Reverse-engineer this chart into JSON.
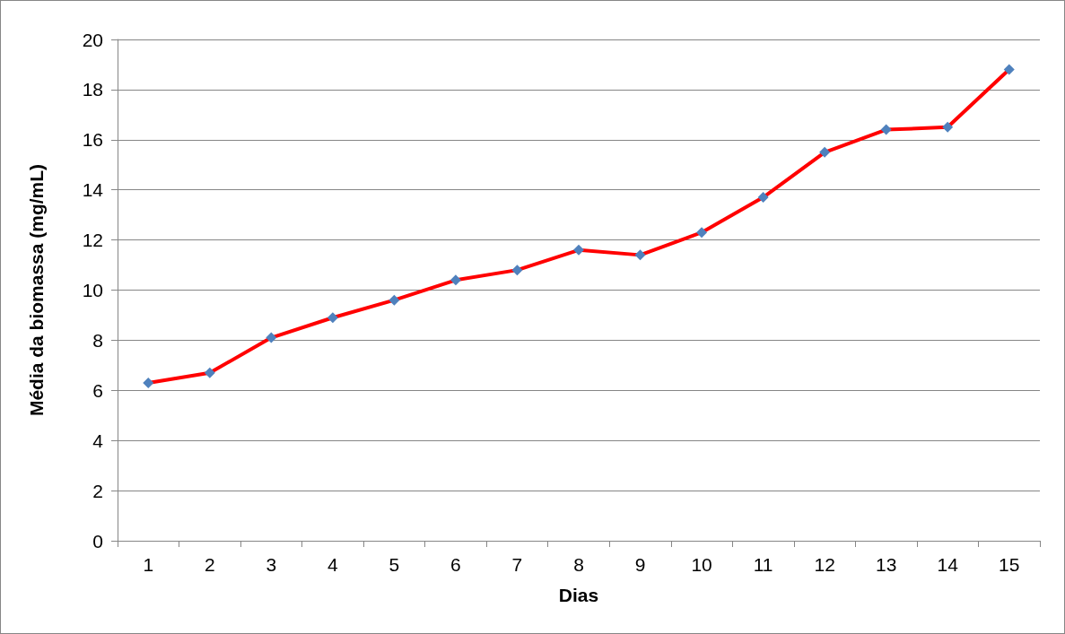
{
  "chart_data": {
    "type": "line",
    "xlabel": "Dias",
    "ylabel": "Média da biomassa (mg/mL)",
    "categories": [
      "1",
      "2",
      "3",
      "4",
      "5",
      "6",
      "7",
      "8",
      "9",
      "10",
      "11",
      "12",
      "13",
      "14",
      "15"
    ],
    "series": [
      {
        "color": "#ff0000",
        "values": [
          6.3,
          6.7,
          8.1,
          8.9,
          9.6,
          10.4,
          10.8,
          11.6,
          11.4,
          12.3,
          13.7,
          15.5,
          16.4,
          16.5,
          18.8
        ]
      }
    ],
    "ylim": [
      0,
      20
    ],
    "yticks": [
      0,
      2,
      4,
      6,
      8,
      10,
      12,
      14,
      16,
      18,
      20
    ],
    "grid": "y",
    "marker": "diamond",
    "line_style": "solid"
  }
}
